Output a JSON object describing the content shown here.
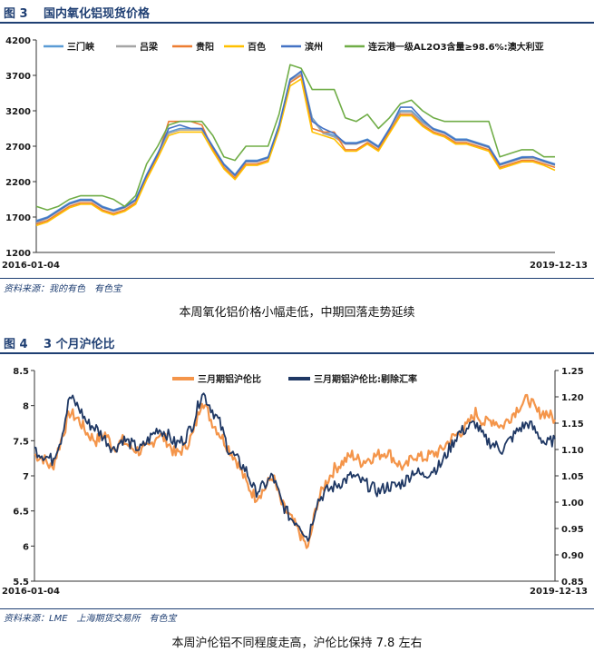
{
  "figure3": {
    "label": "图 3",
    "title": "国内氧化铝现货价格",
    "source": "资料来源：我的有色　有色宝",
    "caption": "本周氧化铝价格小幅走低，中期回落走势延续"
  },
  "figure4": {
    "label": "图 4",
    "title": "3 个月沪伦比",
    "source": "资料来源：LME　上海期货交易所　有色宝",
    "caption": "本周沪伦铝不同程度走高，沪伦比保持 7.8 左右"
  },
  "chart_data": [
    {
      "type": "line",
      "x_start": "2016-01-04",
      "x_end": "2019-12-13",
      "ylim": [
        1200,
        4200
      ],
      "yticks": [
        1200,
        1700,
        2200,
        2700,
        3200,
        3700,
        4200
      ],
      "legend_position": "top",
      "grid": false,
      "series": [
        {
          "name": "三门峡",
          "color": "#5b9bd5",
          "values": [
            1650,
            1700,
            1800,
            1900,
            1950,
            1950,
            1850,
            1800,
            1850,
            1950,
            2300,
            2600,
            2900,
            2950,
            2950,
            2950,
            2700,
            2450,
            2300,
            2500,
            2500,
            2550,
            3000,
            3650,
            3750,
            3100,
            2900,
            2850,
            2750,
            2750,
            2800,
            2700,
            2950,
            3200,
            3200,
            3050,
            2950,
            2900,
            2800,
            2800,
            2750,
            2700,
            2450,
            2500,
            2550,
            2550,
            2500,
            2450
          ]
        },
        {
          "name": "吕梁",
          "color": "#a5a5a5",
          "values": [
            1620,
            1680,
            1780,
            1880,
            1930,
            1930,
            1830,
            1780,
            1830,
            1930,
            2280,
            2580,
            2880,
            2930,
            2930,
            2930,
            2680,
            2430,
            2280,
            2480,
            2480,
            2530,
            2980,
            3630,
            3720,
            3080,
            2880,
            2830,
            2730,
            2730,
            2780,
            2680,
            2930,
            3180,
            3180,
            3030,
            2930,
            2880,
            2780,
            2780,
            2730,
            2680,
            2430,
            2480,
            2530,
            2530,
            2480,
            2430
          ]
        },
        {
          "name": "贵阳",
          "color": "#ed7d31",
          "values": [
            1600,
            1650,
            1750,
            1850,
            1900,
            1900,
            1800,
            1750,
            1800,
            1900,
            2250,
            2550,
            3050,
            3050,
            3050,
            3000,
            2650,
            2400,
            2250,
            2450,
            2450,
            2500,
            2950,
            3600,
            3700,
            2950,
            2900,
            2900,
            2650,
            2650,
            2750,
            2650,
            2900,
            3150,
            3150,
            3000,
            2900,
            2850,
            2750,
            2750,
            2700,
            2650,
            2400,
            2450,
            2500,
            2500,
            2450,
            2400
          ]
        },
        {
          "name": "百色",
          "color": "#ffc000",
          "values": [
            1580,
            1630,
            1730,
            1830,
            1880,
            1880,
            1780,
            1730,
            1780,
            1880,
            2230,
            2530,
            2850,
            2900,
            2900,
            2900,
            2630,
            2380,
            2230,
            2430,
            2430,
            2480,
            2930,
            3550,
            3650,
            2900,
            2850,
            2800,
            2630,
            2630,
            2730,
            2630,
            2880,
            3130,
            3130,
            2980,
            2880,
            2830,
            2730,
            2730,
            2680,
            2630,
            2380,
            2430,
            2480,
            2480,
            2430,
            2360
          ]
        },
        {
          "name": "滨州",
          "color": "#4472c4",
          "values": [
            1640,
            1690,
            1790,
            1890,
            1940,
            1940,
            1840,
            1790,
            1840,
            1940,
            2290,
            2590,
            2950,
            3000,
            2950,
            2950,
            2690,
            2440,
            2290,
            2490,
            2490,
            2540,
            2990,
            3640,
            3760,
            3050,
            2950,
            2880,
            2740,
            2740,
            2790,
            2690,
            2940,
            3250,
            3250,
            3080,
            2940,
            2890,
            2790,
            2790,
            2740,
            2690,
            2440,
            2490,
            2540,
            2550,
            2490,
            2440
          ]
        },
        {
          "name": "连云港一级AL2O3含量≥98.6%:澳大利亚",
          "color": "#70ad47",
          "values": [
            1850,
            1800,
            1850,
            1950,
            2000,
            2000,
            2000,
            1950,
            1850,
            2000,
            2450,
            2700,
            3000,
            3050,
            3050,
            3050,
            2850,
            2550,
            2500,
            2700,
            2700,
            2700,
            3150,
            3850,
            3800,
            3500,
            3500,
            3500,
            3100,
            3050,
            3150,
            2950,
            3100,
            3300,
            3350,
            3200,
            3100,
            3050,
            3050,
            3050,
            3050,
            3050,
            2550,
            2600,
            2650,
            2650,
            2550,
            2550
          ]
        }
      ]
    },
    {
      "type": "line",
      "x_start": "2016-01-04",
      "x_end": "2019-12-13",
      "ylim": [
        5.5,
        8.5
      ],
      "yticks": [
        5.5,
        6,
        6.5,
        7,
        7.5,
        8,
        8.5
      ],
      "y2lim": [
        0.85,
        1.25
      ],
      "y2ticks": [
        0.85,
        0.9,
        0.95,
        1.0,
        1.05,
        1.1,
        1.15,
        1.2,
        1.25
      ],
      "y2ticklabels": [
        "0.85",
        "0.90",
        "0.95",
        "1.00",
        "1.05",
        "1.10",
        "1.15",
        "1.20",
        "1.25"
      ],
      "legend_position": "top",
      "grid": false,
      "series": [
        {
          "name": "三月期铝沪伦比",
          "color": "#f4954a",
          "axis": "left",
          "values": [
            7.3,
            7.25,
            7.1,
            7.5,
            7.9,
            7.8,
            7.6,
            7.5,
            7.6,
            7.4,
            7.5,
            7.4,
            7.35,
            7.4,
            7.6,
            7.5,
            7.3,
            7.4,
            7.6,
            8.1,
            7.8,
            7.6,
            7.4,
            7.2,
            6.9,
            6.7,
            6.8,
            7.0,
            6.6,
            6.4,
            6.2,
            5.95,
            6.6,
            6.9,
            7.1,
            7.2,
            7.3,
            7.2,
            7.25,
            7.3,
            7.35,
            7.2,
            7.1,
            7.3,
            7.25,
            7.3,
            7.35,
            7.5,
            7.6,
            7.7,
            7.9,
            7.75,
            7.8,
            7.7,
            7.85,
            8.0,
            8.1,
            7.9,
            7.9,
            7.8
          ]
        },
        {
          "name": "三月期铝沪伦比:剔除汇率",
          "color": "#1f3864",
          "axis": "right",
          "values": [
            1.1,
            1.09,
            1.08,
            1.12,
            1.2,
            1.18,
            1.15,
            1.14,
            1.12,
            1.1,
            1.12,
            1.11,
            1.1,
            1.12,
            1.14,
            1.13,
            1.11,
            1.12,
            1.15,
            1.21,
            1.18,
            1.15,
            1.1,
            1.08,
            1.06,
            1.02,
            1.03,
            1.05,
            1.0,
            0.97,
            0.96,
            0.93,
            1.0,
            1.02,
            1.03,
            1.04,
            1.05,
            1.04,
            1.03,
            1.02,
            1.03,
            1.03,
            1.04,
            1.06,
            1.05,
            1.06,
            1.07,
            1.1,
            1.13,
            1.14,
            1.15,
            1.12,
            1.11,
            1.1,
            1.12,
            1.14,
            1.15,
            1.13,
            1.11,
            1.12
          ]
        }
      ]
    }
  ]
}
